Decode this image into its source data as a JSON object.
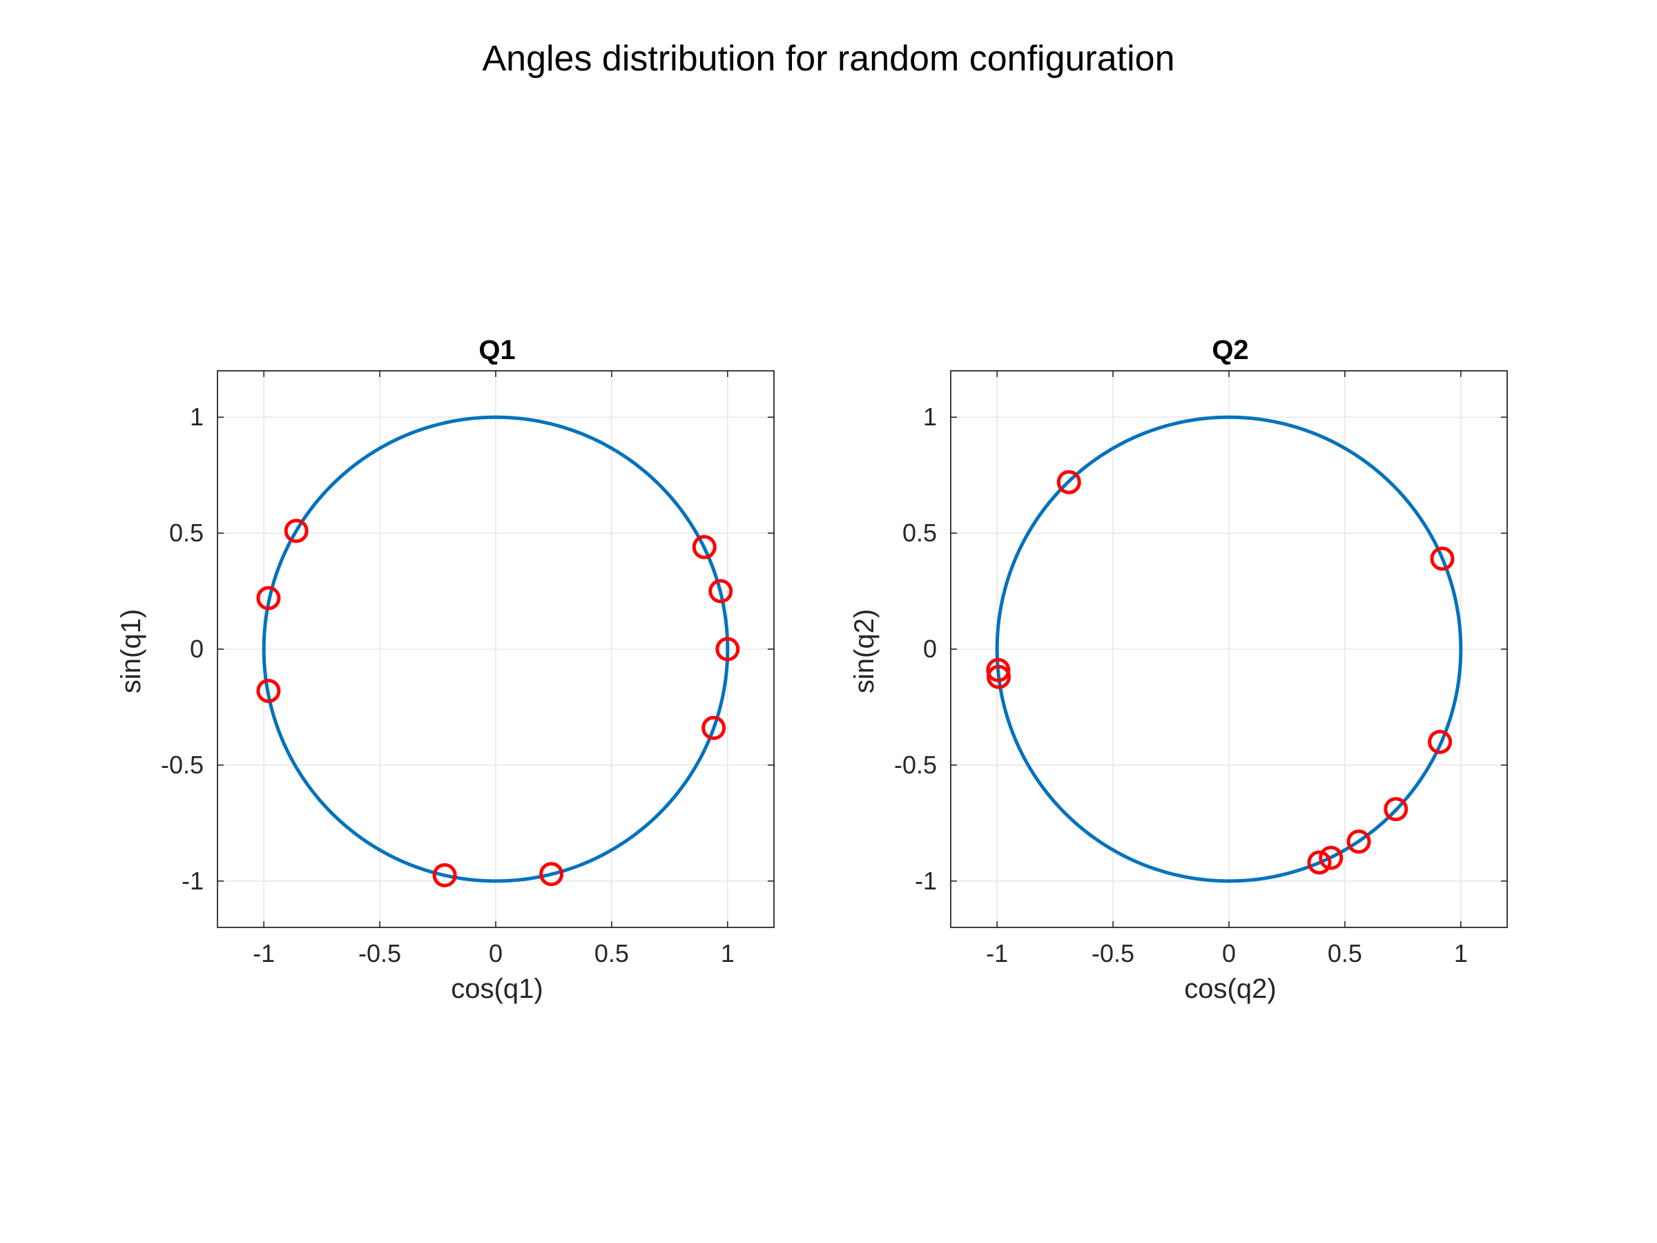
{
  "figure": {
    "title": "Angles distribution for random configuration"
  },
  "colors": {
    "circle": "#0072BD",
    "marker": "#FF0000",
    "grid": "#E5E5E5",
    "axes": "#262626"
  },
  "chart_data": [
    {
      "type": "line",
      "title": "Q1",
      "xlabel": "cos(q1)",
      "ylabel": "sin(q1)",
      "xlim": [
        -1.2,
        1.2
      ],
      "ylim": [
        -1.2,
        1.2
      ],
      "grid": true,
      "xticks": [
        -1,
        -0.5,
        0,
        0.5,
        1
      ],
      "xtick_labels": [
        "-1",
        "-0.5",
        "0",
        "0.5",
        "1"
      ],
      "yticks": [
        -1,
        -0.5,
        0,
        0.5,
        1
      ],
      "ytick_labels": [
        "-1",
        "-0.5",
        "0",
        "0.5",
        "1"
      ],
      "series": [
        {
          "kind": "unit-circle",
          "color": "#0072BD"
        },
        {
          "kind": "scatter",
          "marker": "circle",
          "color": "#FF0000",
          "points": [
            {
              "x": -0.86,
              "y": 0.51
            },
            {
              "x": -0.98,
              "y": 0.22
            },
            {
              "x": -0.98,
              "y": -0.18
            },
            {
              "x": -0.22,
              "y": -0.975
            },
            {
              "x": 0.24,
              "y": -0.97
            },
            {
              "x": 0.9,
              "y": 0.44
            },
            {
              "x": 0.97,
              "y": 0.25
            },
            {
              "x": 1.0,
              "y": 0.0
            },
            {
              "x": 0.94,
              "y": -0.34
            }
          ]
        }
      ]
    },
    {
      "type": "line",
      "title": "Q2",
      "xlabel": "cos(q2)",
      "ylabel": "sin(q2)",
      "xlim": [
        -1.2,
        1.2
      ],
      "ylim": [
        -1.2,
        1.2
      ],
      "grid": true,
      "xticks": [
        -1,
        -0.5,
        0,
        0.5,
        1
      ],
      "xtick_labels": [
        "-1",
        "-0.5",
        "0",
        "0.5",
        "1"
      ],
      "yticks": [
        -1,
        -0.5,
        0,
        0.5,
        1
      ],
      "ytick_labels": [
        "-1",
        "-0.5",
        "0",
        "0.5",
        "1"
      ],
      "series": [
        {
          "kind": "unit-circle",
          "color": "#0072BD"
        },
        {
          "kind": "scatter",
          "marker": "circle",
          "color": "#FF0000",
          "points": [
            {
              "x": -0.69,
              "y": 0.72
            },
            {
              "x": -0.995,
              "y": -0.09
            },
            {
              "x": -0.993,
              "y": -0.12
            },
            {
              "x": 0.92,
              "y": 0.39
            },
            {
              "x": 0.91,
              "y": -0.4
            },
            {
              "x": 0.72,
              "y": -0.69
            },
            {
              "x": 0.56,
              "y": -0.83
            },
            {
              "x": 0.44,
              "y": -0.9
            },
            {
              "x": 0.39,
              "y": -0.92
            }
          ]
        }
      ]
    }
  ]
}
